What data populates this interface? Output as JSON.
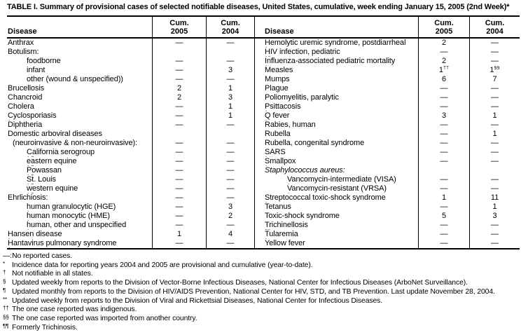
{
  "title": "TABLE I. Summary of provisional cases of selected notifiable diseases, United States, cumulative, week ending January 15, 2005 (2nd Week)*",
  "header": {
    "disease_label": "Disease",
    "cum_label": "Cum.",
    "year_2005": "2005",
    "year_2004": "2004"
  },
  "colors": {
    "text": "#000000",
    "background": "#ffffff",
    "rule": "#000000"
  },
  "no_cases_symbol": "—",
  "table": {
    "left_rows": [
      {
        "label": "Anthrax",
        "indent": 0,
        "v2005": "—",
        "v2004": "—"
      },
      {
        "label": "Botulism:",
        "indent": 0,
        "v2005": "",
        "v2004": ""
      },
      {
        "label": "foodborne",
        "indent": 2,
        "v2005": "—",
        "v2004": "—"
      },
      {
        "label": "infant",
        "indent": 2,
        "v2005": "—",
        "v2004": "3"
      },
      {
        "label": "other (wound & unspecified))",
        "indent": 2,
        "v2005": "—",
        "v2004": "—"
      },
      {
        "label": "Brucellosis",
        "indent": 0,
        "v2005": "2",
        "v2004": "1"
      },
      {
        "label": "Chancroid",
        "indent": 0,
        "v2005": "2",
        "v2004": "3"
      },
      {
        "label": "Cholera",
        "indent": 0,
        "v2005": "—",
        "v2004": "1"
      },
      {
        "label": "Cyclosporiasis",
        "sup": "†",
        "indent": 0,
        "v2005": "—",
        "v2004": "1"
      },
      {
        "label": "Diphtheria",
        "indent": 0,
        "v2005": "—",
        "v2004": "—"
      },
      {
        "label": "Domestic arboviral diseases",
        "indent": 0,
        "v2005": "",
        "v2004": ""
      },
      {
        "label": "(neuroinvasive & non-neuroinvasive):",
        "indent": 1,
        "v2005": "—",
        "v2004": "—"
      },
      {
        "label": "California serogroup",
        "sup": "† §",
        "indent": 2,
        "v2005": "—",
        "v2004": "—"
      },
      {
        "label": "eastern equine",
        "sup": "† §",
        "indent": 2,
        "v2005": "—",
        "v2004": "—"
      },
      {
        "label": "Powassan",
        "sup": "† §",
        "indent": 2,
        "v2005": "—",
        "v2004": "—"
      },
      {
        "label": "St. Louis",
        "sup": "† §",
        "indent": 2,
        "v2005": "—",
        "v2004": "—"
      },
      {
        "label": "western equine",
        "sup": "† §",
        "indent": 2,
        "v2005": "—",
        "v2004": "—"
      },
      {
        "label": "Ehrlichiosis:",
        "indent": 0,
        "v2005": "—",
        "v2004": "—"
      },
      {
        "label": "human granulocytic (HGE)",
        "sup": "†",
        "indent": 2,
        "v2005": "—",
        "v2004": "3"
      },
      {
        "label": "human monocytic (HME)",
        "sup": "†",
        "indent": 2,
        "v2005": "—",
        "v2004": "2"
      },
      {
        "label": "human, other and unspecified ",
        "sup": "†",
        "indent": 2,
        "v2005": "—",
        "v2004": "—"
      },
      {
        "label": "Hansen disease",
        "sup": "†",
        "indent": 0,
        "v2005": "1",
        "v2004": "4"
      },
      {
        "label": "Hantavirus pulmonary syndrome",
        "sup": "†",
        "indent": 0,
        "v2005": "—",
        "v2004": "—"
      }
    ],
    "right_rows": [
      {
        "label": "Hemolytic uremic syndrome, postdiarrheal",
        "sup": "†",
        "indent": 0,
        "v2005": "2",
        "v2004": "—"
      },
      {
        "label": "HIV infection, pediatric",
        "sup": "†¶",
        "indent": 0,
        "v2005": "—",
        "v2004": "—"
      },
      {
        "label": "Influenza-associated pediatric mortality",
        "sup": "†**",
        "indent": 0,
        "v2005": "2",
        "v2004": "—"
      },
      {
        "label": "Measles",
        "indent": 0,
        "v2005": "1",
        "v2005_sup": "††",
        "v2004": "1",
        "v2004_sup": "§§"
      },
      {
        "label": "Mumps",
        "indent": 0,
        "v2005": "6",
        "v2004": "7"
      },
      {
        "label": "Plague",
        "indent": 0,
        "v2005": "—",
        "v2004": "—"
      },
      {
        "label": "Poliomyelitis, paralytic",
        "indent": 0,
        "v2005": "—",
        "v2004": "—"
      },
      {
        "label": "Psittacosis",
        "sup": "†",
        "indent": 0,
        "v2005": "—",
        "v2004": "—"
      },
      {
        "label": "Q fever",
        "sup": "†",
        "indent": 0,
        "v2005": "3",
        "v2004": "1"
      },
      {
        "label": "Rabies, human",
        "indent": 0,
        "v2005": "—",
        "v2004": "—"
      },
      {
        "label": "Rubella",
        "indent": 0,
        "v2005": "—",
        "v2004": "1"
      },
      {
        "label": "Rubella, congenital syndrome",
        "indent": 0,
        "v2005": "—",
        "v2004": "—"
      },
      {
        "label": "SARS",
        "sup": "† **",
        "indent": 0,
        "v2005": "—",
        "v2004": "—"
      },
      {
        "label": "Smallpox",
        "sup": "†",
        "indent": 0,
        "v2005": "—",
        "v2004": "—"
      },
      {
        "label": "Staphylococcus aureus:",
        "italic": true,
        "indent": 0,
        "v2005": "",
        "v2004": ""
      },
      {
        "label": "Vancomycin-intermediate (VISA)",
        "sup": "†",
        "indent": 2,
        "v2005": "—",
        "v2004": "—"
      },
      {
        "label": "Vancomycin-resistant (VRSA)",
        "sup": "†",
        "indent": 2,
        "v2005": "—",
        "v2004": "—"
      },
      {
        "label": "Streptococcal toxic-shock syndrome",
        "sup": "†",
        "indent": 0,
        "v2005": "1",
        "v2004": "11"
      },
      {
        "label": "Tetanus",
        "indent": 0,
        "v2005": "—",
        "v2004": "1"
      },
      {
        "label": "Toxic-shock syndrome",
        "indent": 0,
        "v2005": "5",
        "v2004": "3"
      },
      {
        "label": "Trichinellosis",
        "sup": "¶¶",
        "indent": 0,
        "v2005": "—",
        "v2004": "—"
      },
      {
        "label": "Tularemia",
        "sup": "†",
        "indent": 0,
        "v2005": "—",
        "v2004": "—"
      },
      {
        "label": "Yellow fever",
        "indent": 0,
        "v2005": "—",
        "v2004": "—"
      }
    ]
  },
  "footnotes": [
    {
      "marker": "—:",
      "raised": false,
      "text": "No reported cases."
    },
    {
      "marker": "*",
      "raised": true,
      "text": "Incidence data for reporting years 2004 and 2005 are provisional and cumulative (year-to-date)."
    },
    {
      "marker": "†",
      "raised": true,
      "text": "Not notifiable in all states."
    },
    {
      "marker": "§",
      "raised": true,
      "text": "Updated weekly from reports to the Division of Vector-Borne Infectious Diseases, National Center for Infectious Diseases (ArboNet Surveillance)."
    },
    {
      "marker": "¶",
      "raised": true,
      "text": "Updated monthly from reports to the Division of HIV/AIDS Prevention, National Center for HIV, STD, and TB Prevention. Last update November 28, 2004."
    },
    {
      "marker": "**",
      "raised": true,
      "text": "Updated weekly from reports to the Division of Viral and Rickettsial Diseases, National Center for Infectious Diseases."
    },
    {
      "marker": "††",
      "raised": true,
      "text": "The one case reported was indigenous."
    },
    {
      "marker": "§§",
      "raised": true,
      "text": "The one case reported was imported from another country."
    },
    {
      "marker": "¶¶",
      "raised": true,
      "text": "Formerly Trichinosis."
    }
  ]
}
